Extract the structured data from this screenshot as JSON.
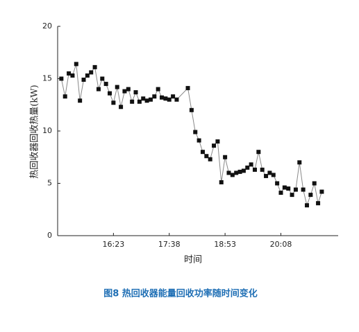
{
  "chart_data": {
    "type": "line",
    "caption": "图8 热回收器能量回收功率随时间变化",
    "x_label": "时间",
    "y_label": "热回收器回收热量(kW)",
    "x": [
      913,
      918,
      923,
      928,
      933,
      938,
      943,
      948,
      953,
      958,
      963,
      968,
      973,
      978,
      983,
      988,
      993,
      998,
      1003,
      1008,
      1013,
      1018,
      1023,
      1028,
      1033,
      1038,
      1043,
      1048,
      1053,
      1058,
      1063,
      1068,
      1083,
      1088,
      1093,
      1098,
      1103,
      1108,
      1113,
      1118,
      1123,
      1128,
      1133,
      1138,
      1143,
      1148,
      1153,
      1158,
      1163,
      1168,
      1173,
      1178,
      1183,
      1188,
      1193,
      1198,
      1203,
      1208,
      1213,
      1218,
      1223,
      1228,
      1233,
      1238,
      1243,
      1248,
      1253,
      1258,
      1263
    ],
    "values": [
      15.0,
      13.3,
      15.5,
      15.3,
      16.4,
      12.9,
      14.9,
      15.3,
      15.6,
      16.1,
      14.0,
      15.0,
      14.5,
      13.6,
      12.7,
      14.2,
      12.3,
      13.8,
      14.0,
      12.8,
      13.7,
      12.8,
      13.1,
      12.9,
      13.0,
      13.3,
      14.0,
      13.2,
      13.1,
      13.0,
      13.3,
      13.0,
      14.1,
      12.0,
      9.9,
      9.1,
      8.0,
      7.6,
      7.3,
      8.6,
      9.0,
      5.1,
      7.5,
      6.0,
      5.8,
      6.0,
      6.1,
      6.2,
      6.5,
      6.8,
      6.3,
      8.0,
      6.3,
      5.7,
      6.0,
      5.8,
      5.0,
      4.1,
      4.6,
      4.5,
      3.9,
      4.4,
      7.0,
      4.4,
      2.9,
      3.9,
      5.0,
      3.1,
      4.2
    ],
    "line_color": "#888888",
    "marker_color": "#111111",
    "xlim": [
      908,
      1285
    ],
    "xticks": [
      {
        "value": 983,
        "label": "16:23"
      },
      {
        "value": 1058,
        "label": "17:38"
      },
      {
        "value": 1133,
        "label": "18:53"
      },
      {
        "value": 1208,
        "label": "20:08"
      }
    ],
    "ylim": [
      0,
      20
    ],
    "yticks": [
      0,
      5,
      10,
      15,
      20
    ]
  }
}
